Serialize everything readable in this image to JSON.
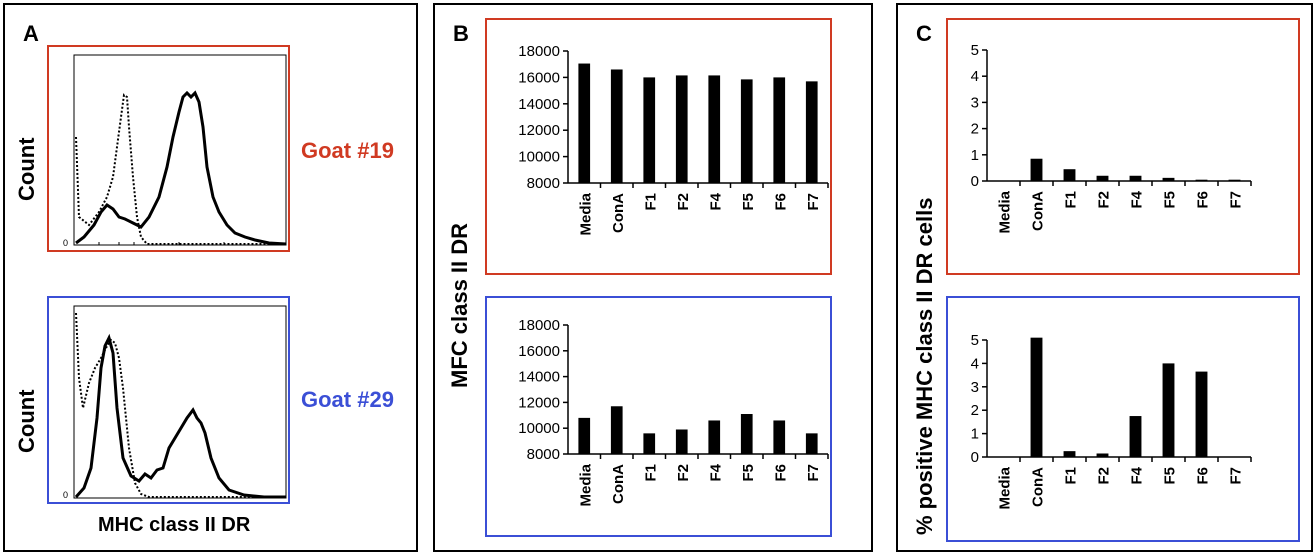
{
  "panels": {
    "a": {
      "label": "A",
      "y_title": "Count",
      "x_title": "MHC class II DR",
      "zero_tick": "0",
      "top": {
        "goat_label": "Goat #19",
        "color": "#d03a22"
      },
      "bottom": {
        "goat_label": "Goat #29",
        "color": "#3b4fd6"
      }
    },
    "b": {
      "label": "B",
      "y_title": "MFC class II DR"
    },
    "c": {
      "label": "C",
      "y_title": "% positive MHC class II DR cells"
    }
  },
  "colors": {
    "goat19": "#d03a22",
    "goat29": "#3b4fd6",
    "bar": "#000000"
  },
  "chart_data": [
    {
      "id": "b_goat19",
      "type": "bar",
      "categories": [
        "Media",
        "ConA",
        "F1",
        "F2",
        "F4",
        "F5",
        "F6",
        "F7"
      ],
      "values": [
        17050,
        16600,
        16000,
        16150,
        16150,
        15850,
        16000,
        15700
      ],
      "ylim": [
        8000,
        18000
      ],
      "yticks": [
        8000,
        10000,
        12000,
        14000,
        16000,
        18000
      ],
      "title": "",
      "xlabel": "",
      "ylabel": "MFC class II DR"
    },
    {
      "id": "b_goat29",
      "type": "bar",
      "categories": [
        "Media",
        "ConA",
        "F1",
        "F2",
        "F4",
        "F5",
        "F6",
        "F7"
      ],
      "values": [
        10800,
        11700,
        9600,
        9900,
        10600,
        11100,
        10600,
        9600
      ],
      "ylim": [
        8000,
        18000
      ],
      "yticks": [
        8000,
        10000,
        12000,
        14000,
        16000,
        18000
      ],
      "title": "",
      "xlabel": "",
      "ylabel": "MFC class II DR"
    },
    {
      "id": "c_goat19",
      "type": "bar",
      "categories": [
        "Media",
        "ConA",
        "F1",
        "F2",
        "F4",
        "F5",
        "F6",
        "F7"
      ],
      "values": [
        0,
        0.85,
        0.45,
        0.2,
        0.2,
        0.12,
        0.05,
        0.05
      ],
      "ylim": [
        0,
        5
      ],
      "yticks": [
        0,
        1,
        2,
        3,
        4,
        5
      ],
      "title": "",
      "xlabel": "",
      "ylabel": "% positive MHC class II DR cells"
    },
    {
      "id": "c_goat29",
      "type": "bar",
      "categories": [
        "Media",
        "ConA",
        "F1",
        "F2",
        "F4",
        "F5",
        "F6",
        "F7"
      ],
      "values": [
        0,
        5.1,
        0.25,
        0.15,
        1.75,
        4.0,
        3.65,
        0
      ],
      "ylim": [
        0,
        5
      ],
      "yticks": [
        0,
        1,
        2,
        3,
        4,
        5
      ],
      "title": "",
      "xlabel": "",
      "ylabel": "% positive MHC class II DR cells"
    }
  ]
}
